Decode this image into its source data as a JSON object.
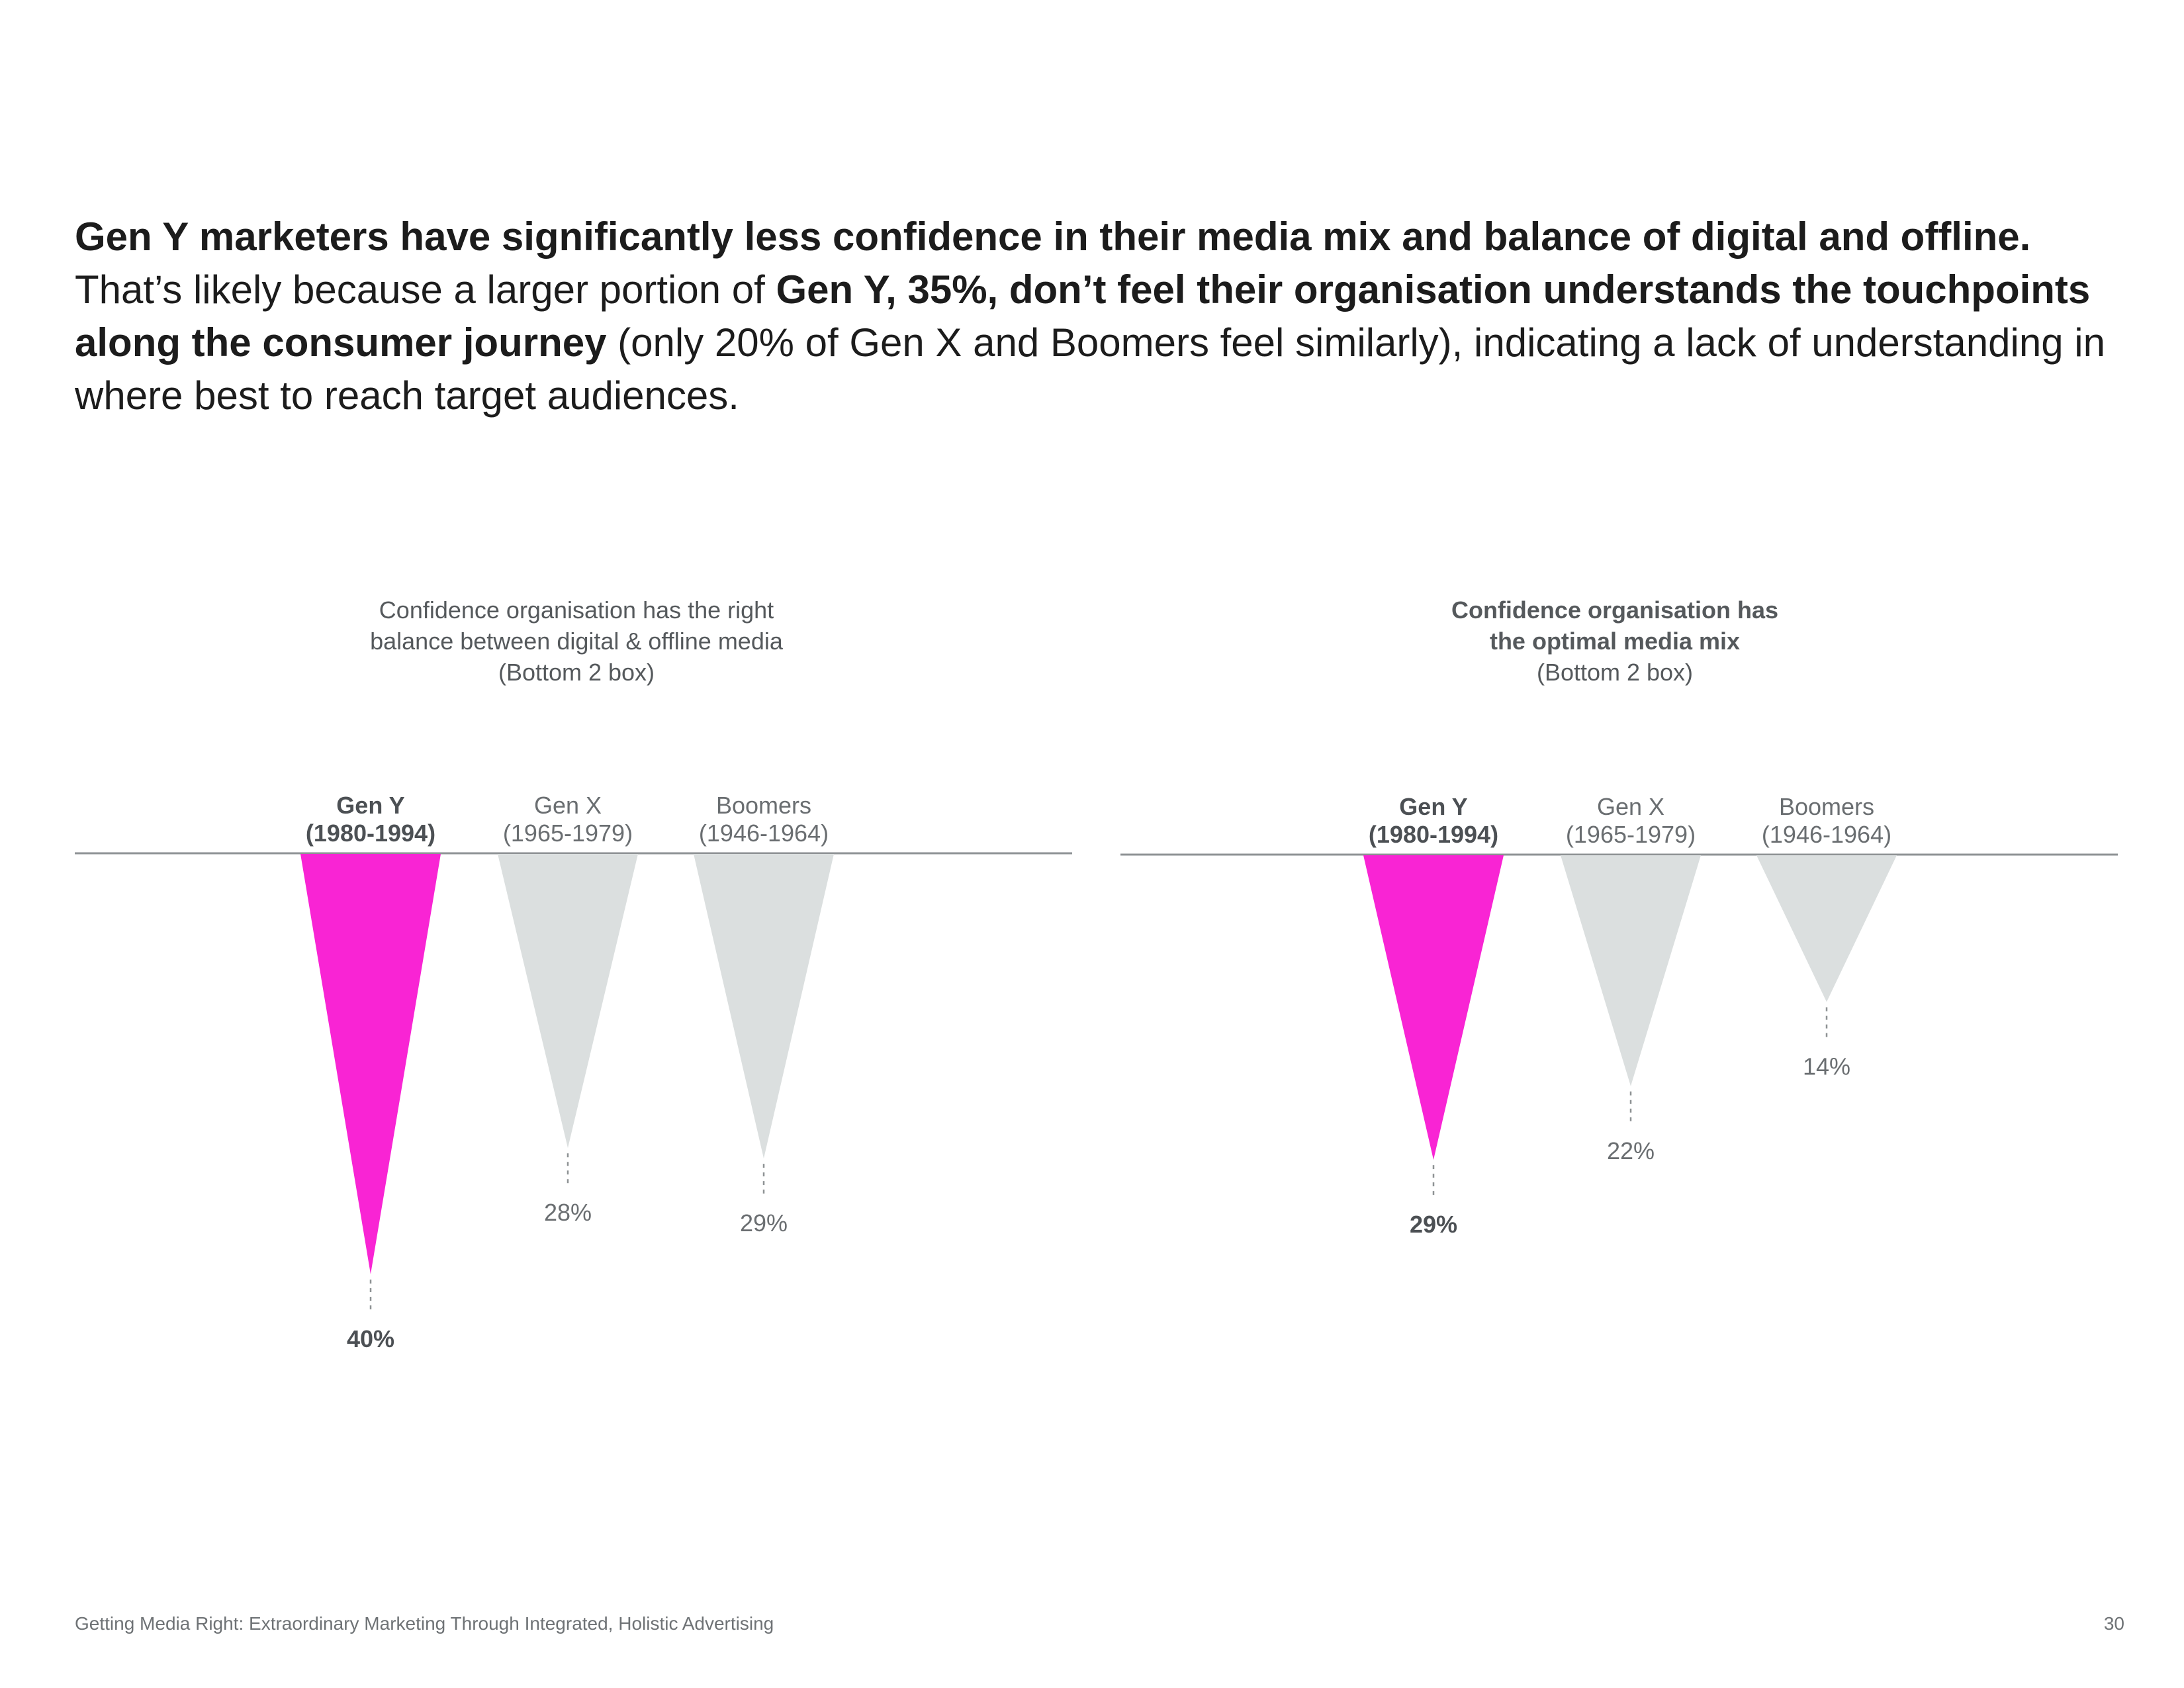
{
  "headline": {
    "bold1": "Gen Y marketers have significantly less confidence in their media mix and balance of digital and offline.",
    "text1": " That’s likely because a larger portion of ",
    "bold2": "Gen Y, 35%, don’t feel their organisation understands the touchpoints along the consumer journey",
    "text2": " (only 20% of Gen X and Boomers feel similarly), indicating a lack of understanding in where best to reach target audiences."
  },
  "chart_data": [
    {
      "type": "bar",
      "title_lines": [
        "Confidence organisation has the right",
        "balance between digital & offline media"
      ],
      "subtitle": "(Bottom 2 box)",
      "title_bold": false,
      "categories": [
        {
          "name": "Gen Y",
          "years": "(1980-1994)",
          "highlight": true
        },
        {
          "name": "Gen X",
          "years": "(1965-1979)",
          "highlight": false
        },
        {
          "name": "Boomers",
          "years": "(1946-1964)",
          "highlight": false
        }
      ],
      "values": [
        40,
        28,
        29
      ],
      "value_labels": [
        "40%",
        "28%",
        "29%"
      ],
      "unit": "%",
      "orientation": "downward inverted triangles"
    },
    {
      "type": "bar",
      "title_lines": [
        "Confidence organisation has",
        "the optimal media mix"
      ],
      "subtitle": "(Bottom 2 box)",
      "title_bold": true,
      "categories": [
        {
          "name": "Gen Y",
          "years": "(1980-1994)",
          "highlight": true
        },
        {
          "name": "Gen X",
          "years": "(1965-1979)",
          "highlight": false
        },
        {
          "name": "Boomers",
          "years": "(1946-1964)",
          "highlight": false
        }
      ],
      "values": [
        29,
        22,
        14
      ],
      "value_labels": [
        "29%",
        "22%",
        "14%"
      ],
      "unit": "%",
      "orientation": "downward inverted triangles"
    }
  ],
  "colors": {
    "highlight": "#f924d4",
    "muted": "#dbdfdf",
    "axis": "#8e9294",
    "label_dark": "#4c5054",
    "label_light": "#6a6e71"
  },
  "footer": {
    "text": "Getting Media Right: Extraordinary Marketing Through Integrated, Holistic Advertising",
    "page": "30"
  }
}
